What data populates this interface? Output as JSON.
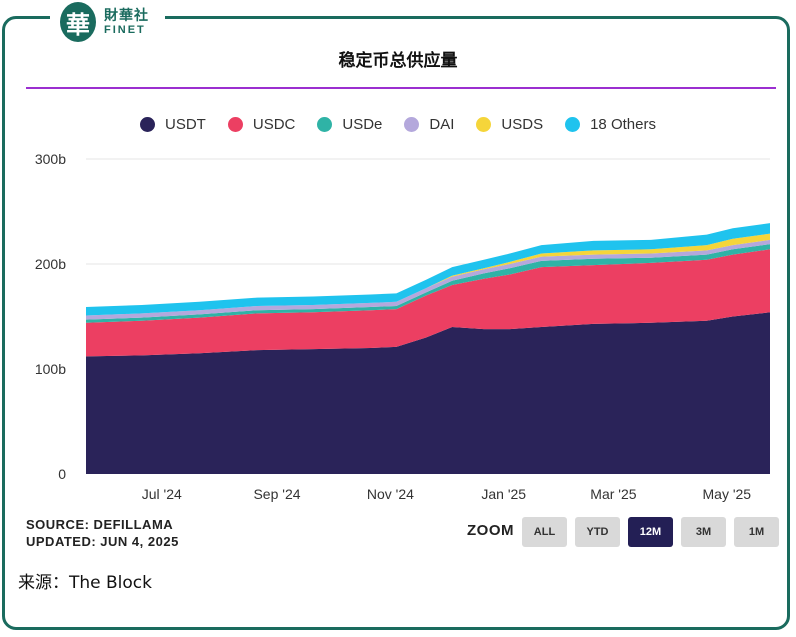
{
  "brand": {
    "logo_char": "華",
    "name_cn": "財華社",
    "name_en": "FINET"
  },
  "title": "稳定币总供应量",
  "legend": [
    {
      "label": "USDT",
      "color": "#2a2359"
    },
    {
      "label": "USDC",
      "color": "#ec3f62"
    },
    {
      "label": "USDe",
      "color": "#2fb3a6"
    },
    {
      "label": "DAI",
      "color": "#b4a8dc"
    },
    {
      "label": "USDS",
      "color": "#f5d53a"
    },
    {
      "label": "18 Others",
      "color": "#1fc3ee"
    }
  ],
  "chart_data": {
    "type": "area",
    "stacked": true,
    "title": "稳定币总供应量",
    "y_ticks": [
      "0",
      "100b",
      "200b",
      "300b"
    ],
    "ylim": [
      0,
      300
    ],
    "y_unit": "b",
    "x_ticks": [
      "Jul '24",
      "Sep '24",
      "Nov '24",
      "Jan '25",
      "Mar '25",
      "May '25"
    ],
    "x": [
      "2024-06-01",
      "2024-07-01",
      "2024-08-01",
      "2024-09-01",
      "2024-10-01",
      "2024-11-01",
      "2024-11-15",
      "2024-12-01",
      "2024-12-15",
      "2025-01-01",
      "2025-01-15",
      "2025-02-01",
      "2025-03-01",
      "2025-04-01",
      "2025-05-01",
      "2025-05-15",
      "2025-06-04"
    ],
    "series": [
      {
        "name": "USDT",
        "values": [
          112,
          113,
          115,
          118,
          119,
          120,
          121,
          130,
          140,
          138,
          138,
          140,
          143,
          144,
          146,
          150,
          154
        ]
      },
      {
        "name": "USDC",
        "values": [
          32,
          33,
          34,
          35,
          35,
          36,
          36,
          40,
          40,
          48,
          52,
          57,
          56,
          57,
          58,
          59,
          60
        ]
      },
      {
        "name": "USDe",
        "values": [
          3,
          3,
          3,
          3,
          3,
          3,
          3,
          3,
          4,
          5,
          6,
          6,
          6,
          5,
          5,
          5,
          5
        ]
      },
      {
        "name": "DAI",
        "values": [
          4,
          4,
          4,
          4,
          4,
          4,
          4,
          4,
          4,
          4,
          4,
          4,
          4,
          4,
          4,
          4,
          4
        ]
      },
      {
        "name": "USDS",
        "values": [
          0,
          0,
          0,
          0,
          0,
          0,
          0,
          0,
          1,
          1,
          2,
          3,
          4,
          4,
          5,
          6,
          6
        ]
      },
      {
        "name": "18 Others",
        "values": [
          8,
          8,
          8,
          8,
          8,
          8,
          8,
          8,
          8,
          8,
          8,
          8,
          9,
          9,
          10,
          10,
          10
        ]
      }
    ],
    "grid": true,
    "legend_position": "top"
  },
  "footer": {
    "source": "SOURCE: DEFILLAMA",
    "updated": "UPDATED: JUN 4, 2025"
  },
  "zoom": {
    "label": "ZOOM",
    "options": [
      "ALL",
      "YTD",
      "12M",
      "3M",
      "1M"
    ],
    "selected": "12M"
  },
  "credit": "来源：The Block"
}
